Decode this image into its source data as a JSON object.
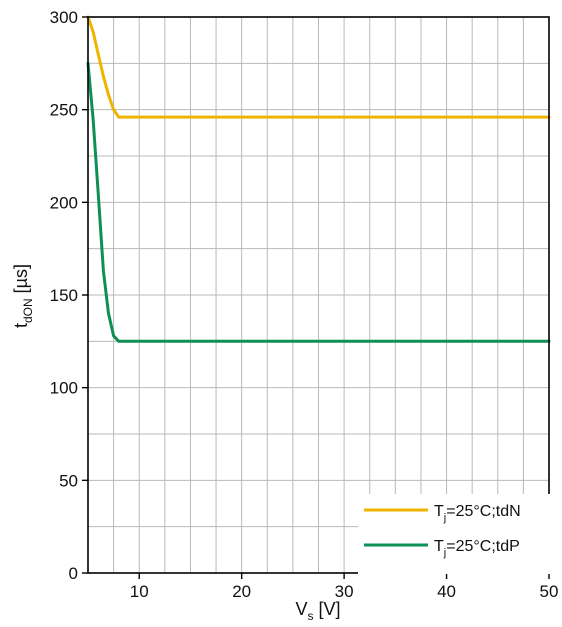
{
  "chart_data": {
    "type": "line",
    "xlabel": {
      "main": "V",
      "sub": "s",
      "unit": " [V]"
    },
    "ylabel": {
      "main": "t",
      "sub": "dON",
      "unit": " [µs]"
    },
    "xlim": [
      5,
      50
    ],
    "ylim": [
      0,
      300
    ],
    "x_ticks": [
      10,
      20,
      30,
      40,
      50
    ],
    "y_ticks": [
      0,
      50,
      100,
      150,
      200,
      250,
      300
    ],
    "grid": {
      "x_step": 2.5,
      "y_step": 25,
      "color": "#b9b9b9"
    },
    "legend_position": "bottom-right",
    "series": [
      {
        "name": "Tj=25°C;tdN",
        "legend": {
          "main": "T",
          "sub": "j",
          "rest": "=25°C;tdN"
        },
        "color": "#f0b400",
        "x": [
          5,
          5.5,
          6,
          6.5,
          7,
          7.5,
          8,
          9,
          10,
          20,
          30,
          40,
          50
        ],
        "y": [
          300,
          292,
          280,
          268,
          258,
          250,
          246,
          246,
          246,
          246,
          246,
          246,
          246
        ]
      },
      {
        "name": "Tj=25°C;tdP",
        "legend": {
          "main": "T",
          "sub": "j",
          "rest": "=25°C;tdP"
        },
        "color": "#0e8f55",
        "x": [
          5,
          5.5,
          6,
          6.5,
          7,
          7.5,
          8,
          9,
          10,
          20,
          30,
          40,
          50
        ],
        "y": [
          275,
          245,
          205,
          163,
          140,
          128,
          125,
          125,
          125,
          125,
          125,
          125,
          125
        ]
      }
    ]
  }
}
